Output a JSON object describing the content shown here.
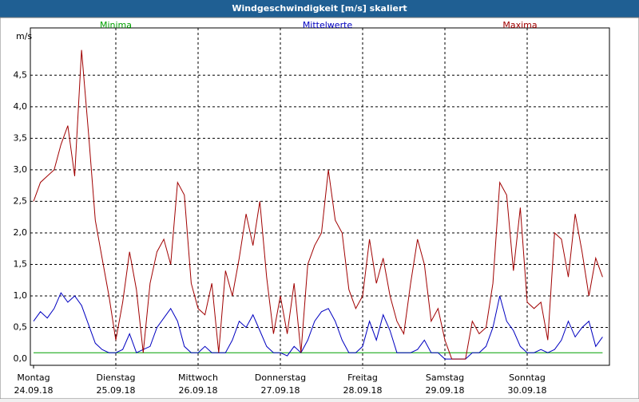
{
  "header": {
    "title": "Windgeschwindigkeit [m/s] skaliert"
  },
  "chart_data": {
    "type": "line",
    "ylabel": "m/s",
    "xlim": [
      0,
      7
    ],
    "xticks": [
      {
        "value": 0,
        "label": "Montag",
        "date": "24.09.18"
      },
      {
        "value": 1,
        "label": "Dienstag",
        "date": "25.09.18"
      },
      {
        "value": 2,
        "label": "Mittwoch",
        "date": "26.09.18"
      },
      {
        "value": 3,
        "label": "Donnerstag",
        "date": "27.09.18"
      },
      {
        "value": 4,
        "label": "Freitag",
        "date": "28.09.18"
      },
      {
        "value": 5,
        "label": "Samstag",
        "date": "29.09.18"
      },
      {
        "value": 6,
        "label": "Sonntag",
        "date": "30.09.18"
      }
    ],
    "ylim": [
      -0.1,
      5.25
    ],
    "yticks": [
      {
        "value": 0,
        "label": "0,0"
      },
      {
        "value": 0.5,
        "label": "0,5"
      },
      {
        "value": 1,
        "label": "1,0"
      },
      {
        "value": 1.5,
        "label": "1,5"
      },
      {
        "value": 2,
        "label": "2,0"
      },
      {
        "value": 2.5,
        "label": "2,5"
      },
      {
        "value": 3,
        "label": "3,0"
      },
      {
        "value": 3.5,
        "label": "3,5"
      },
      {
        "value": 4,
        "label": "4,0"
      },
      {
        "value": 4.5,
        "label": "4,5"
      }
    ],
    "grid": true,
    "series": [
      {
        "name": "Minima",
        "color": "#00a000",
        "values": [
          0.1,
          0.1,
          0.1,
          0.1,
          0.1,
          0.1,
          0.1,
          0.1,
          0.1,
          0.1,
          0.1,
          0.1,
          0.1,
          0.1,
          0.1,
          0.1,
          0.1,
          0.1,
          0.1,
          0.1,
          0.1,
          0.1,
          0.1,
          0.1,
          0.1,
          0.1,
          0.1,
          0.1,
          0.1,
          0.1,
          0.1,
          0.1,
          0.1,
          0.1,
          0.1,
          0.1,
          0.1,
          0.1,
          0.1,
          0.1,
          0.1,
          0.1,
          0.1,
          0.1,
          0.1,
          0.1,
          0.1,
          0.1,
          0.1,
          0.1,
          0.1,
          0.1,
          0.1,
          0.1,
          0.1,
          0.1,
          0.1,
          0.1,
          0.1,
          0.1,
          0.1,
          0.1,
          0.1,
          0.1,
          0.1,
          0.1,
          0.1,
          0.1,
          0.1,
          0.1,
          0.1,
          0.1,
          0.1,
          0.1,
          0.1,
          0.1,
          0.1,
          0.1,
          0.1,
          0.1,
          0.1,
          0.1,
          0.1,
          0.1
        ]
      },
      {
        "name": "Mittelwerte",
        "color": "#0000c0",
        "values": [
          0.6,
          0.75,
          0.65,
          0.8,
          1.05,
          0.9,
          1.0,
          0.85,
          0.55,
          0.25,
          0.15,
          0.1,
          0.1,
          0.15,
          0.4,
          0.1,
          0.15,
          0.2,
          0.5,
          0.65,
          0.8,
          0.6,
          0.2,
          0.1,
          0.1,
          0.2,
          0.1,
          0.1,
          0.1,
          0.3,
          0.6,
          0.5,
          0.7,
          0.45,
          0.2,
          0.1,
          0.1,
          0.05,
          0.2,
          0.1,
          0.3,
          0.6,
          0.75,
          0.8,
          0.6,
          0.3,
          0.1,
          0.1,
          0.2,
          0.6,
          0.3,
          0.7,
          0.45,
          0.1,
          0.1,
          0.1,
          0.15,
          0.3,
          0.1,
          0.1,
          0.0,
          0.0,
          0.0,
          0.0,
          0.1,
          0.1,
          0.2,
          0.5,
          1.0,
          0.6,
          0.45,
          0.2,
          0.1,
          0.1,
          0.15,
          0.1,
          0.15,
          0.3,
          0.6,
          0.35,
          0.5,
          0.6,
          0.2,
          0.35
        ]
      },
      {
        "name": "Maxima",
        "color": "#a00000",
        "values": [
          2.5,
          2.8,
          2.9,
          3.0,
          3.4,
          3.7,
          2.9,
          4.9,
          3.6,
          2.2,
          1.6,
          1.0,
          0.3,
          0.9,
          1.7,
          1.1,
          0.1,
          1.2,
          1.7,
          1.9,
          1.5,
          2.8,
          2.6,
          1.2,
          0.8,
          0.7,
          1.2,
          0.1,
          1.4,
          1.0,
          1.6,
          2.3,
          1.8,
          2.5,
          1.3,
          0.4,
          1.0,
          0.4,
          1.2,
          0.1,
          1.5,
          1.8,
          2.0,
          3.0,
          2.2,
          2.0,
          1.1,
          0.8,
          1.0,
          1.9,
          1.2,
          1.6,
          1.0,
          0.6,
          0.4,
          1.2,
          1.9,
          1.5,
          0.6,
          0.8,
          0.3,
          0.0,
          0.0,
          0.0,
          0.6,
          0.4,
          0.5,
          1.2,
          2.8,
          2.6,
          1.4,
          2.4,
          0.9,
          0.8,
          0.9,
          0.3,
          2.0,
          1.9,
          1.3,
          2.3,
          1.7,
          1.0,
          1.6,
          1.3
        ]
      }
    ]
  }
}
